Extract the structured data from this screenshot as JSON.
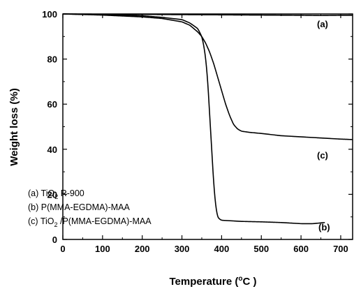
{
  "chart_data": {
    "type": "line",
    "xlabel_main": "Temperature (",
    "xlabel_unit_sup": "o",
    "xlabel_unit_rest": "C )",
    "ylabel": "Weight loss (%)",
    "xlim": [
      0,
      730
    ],
    "ylim": [
      0,
      100
    ],
    "xticks": [
      0,
      100,
      200,
      300,
      400,
      500,
      600,
      700
    ],
    "yticks": [
      0,
      20,
      40,
      60,
      80,
      100
    ],
    "legend": {
      "placement": "bottom-left",
      "entries": [
        {
          "prefix": "(a) TiO",
          "sub": "2",
          "suffix": " R-900"
        },
        {
          "prefix": "(b) P(MMA-EGDMA)-MAA",
          "sub": "",
          "suffix": ""
        },
        {
          "prefix": "(c) TiO",
          "sub": "2",
          "suffix": " /P(MMA-EGDMA)-MAA"
        }
      ]
    },
    "series": [
      {
        "label": "(a)",
        "x": [
          0,
          100,
          200,
          300,
          400,
          500,
          600,
          650,
          700,
          730
        ],
        "y": [
          100,
          99.9,
          99.8,
          99.7,
          99.6,
          99.5,
          99.4,
          99.3,
          99.4,
          99.4
        ]
      },
      {
        "label": "(b)",
        "x": [
          0,
          100,
          200,
          250,
          300,
          320,
          340,
          350,
          355,
          360,
          365,
          370,
          375,
          380,
          385,
          390,
          395,
          400,
          420,
          450,
          500,
          550,
          600,
          630,
          660
        ],
        "y": [
          100,
          99.7,
          99.2,
          98.5,
          97.5,
          96.0,
          93.5,
          90,
          86,
          80,
          70,
          55,
          40,
          25,
          15,
          10,
          9,
          8.5,
          8.3,
          8,
          7.8,
          7.5,
          7,
          7,
          7.5
        ]
      },
      {
        "label": "(c)",
        "x": [
          0,
          100,
          200,
          250,
          300,
          320,
          340,
          350,
          360,
          370,
          380,
          390,
          400,
          410,
          420,
          430,
          440,
          450,
          470,
          500,
          550,
          600,
          650,
          700,
          730
        ],
        "y": [
          100,
          99.5,
          98.7,
          98,
          96.5,
          95,
          92,
          90,
          87,
          83,
          78,
          72,
          66,
          60,
          55,
          51,
          49,
          48,
          47.5,
          47,
          46,
          45.5,
          45,
          44.5,
          44.3
        ]
      }
    ]
  }
}
